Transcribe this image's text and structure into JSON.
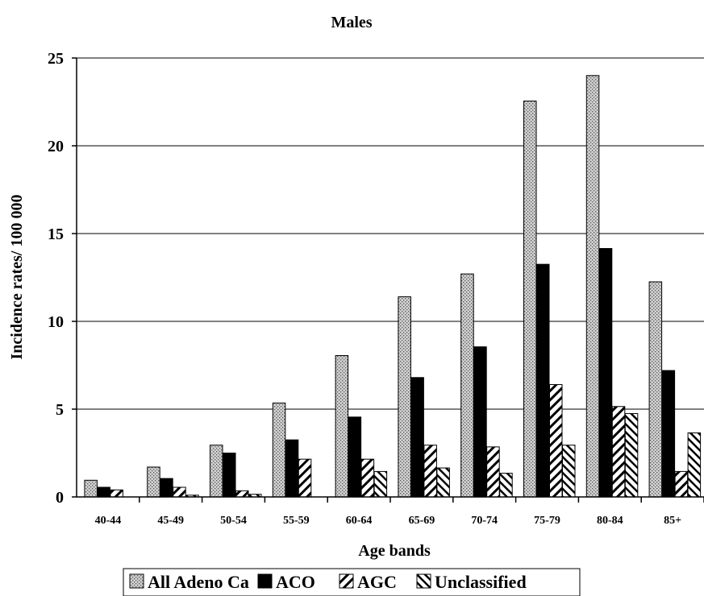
{
  "chart_data": {
    "type": "bar",
    "title": "Males",
    "xlabel": "Age bands",
    "ylabel": "Incidence rates/ 100 000",
    "ylim": [
      0,
      25
    ],
    "yticks": [
      0,
      5,
      10,
      15,
      20,
      25
    ],
    "grid": true,
    "legend_position": "bottom",
    "categories": [
      "40-44",
      "45-49",
      "50-54",
      "55-59",
      "60-64",
      "65-69",
      "70-74",
      "75-79",
      "80-84",
      "85+"
    ],
    "series": [
      {
        "name": "All Adeno Ca",
        "pattern": "dotted-grey",
        "values": [
          0.95,
          1.7,
          2.95,
          5.35,
          8.05,
          11.4,
          12.7,
          22.55,
          24.0,
          12.25
        ]
      },
      {
        "name": "ACO",
        "pattern": "solid-black",
        "values": [
          0.55,
          1.05,
          2.5,
          3.25,
          4.55,
          6.8,
          8.55,
          13.25,
          14.15,
          7.2
        ]
      },
      {
        "name": "AGC",
        "pattern": "forward-hatch",
        "values": [
          0.4,
          0.55,
          0.35,
          2.15,
          2.15,
          2.95,
          2.85,
          6.4,
          5.15,
          1.45
        ]
      },
      {
        "name": "Unclassified",
        "pattern": "back-hatch",
        "values": [
          0.0,
          0.1,
          0.15,
          0.0,
          1.45,
          1.65,
          1.35,
          2.95,
          4.75,
          3.65
        ]
      }
    ]
  }
}
